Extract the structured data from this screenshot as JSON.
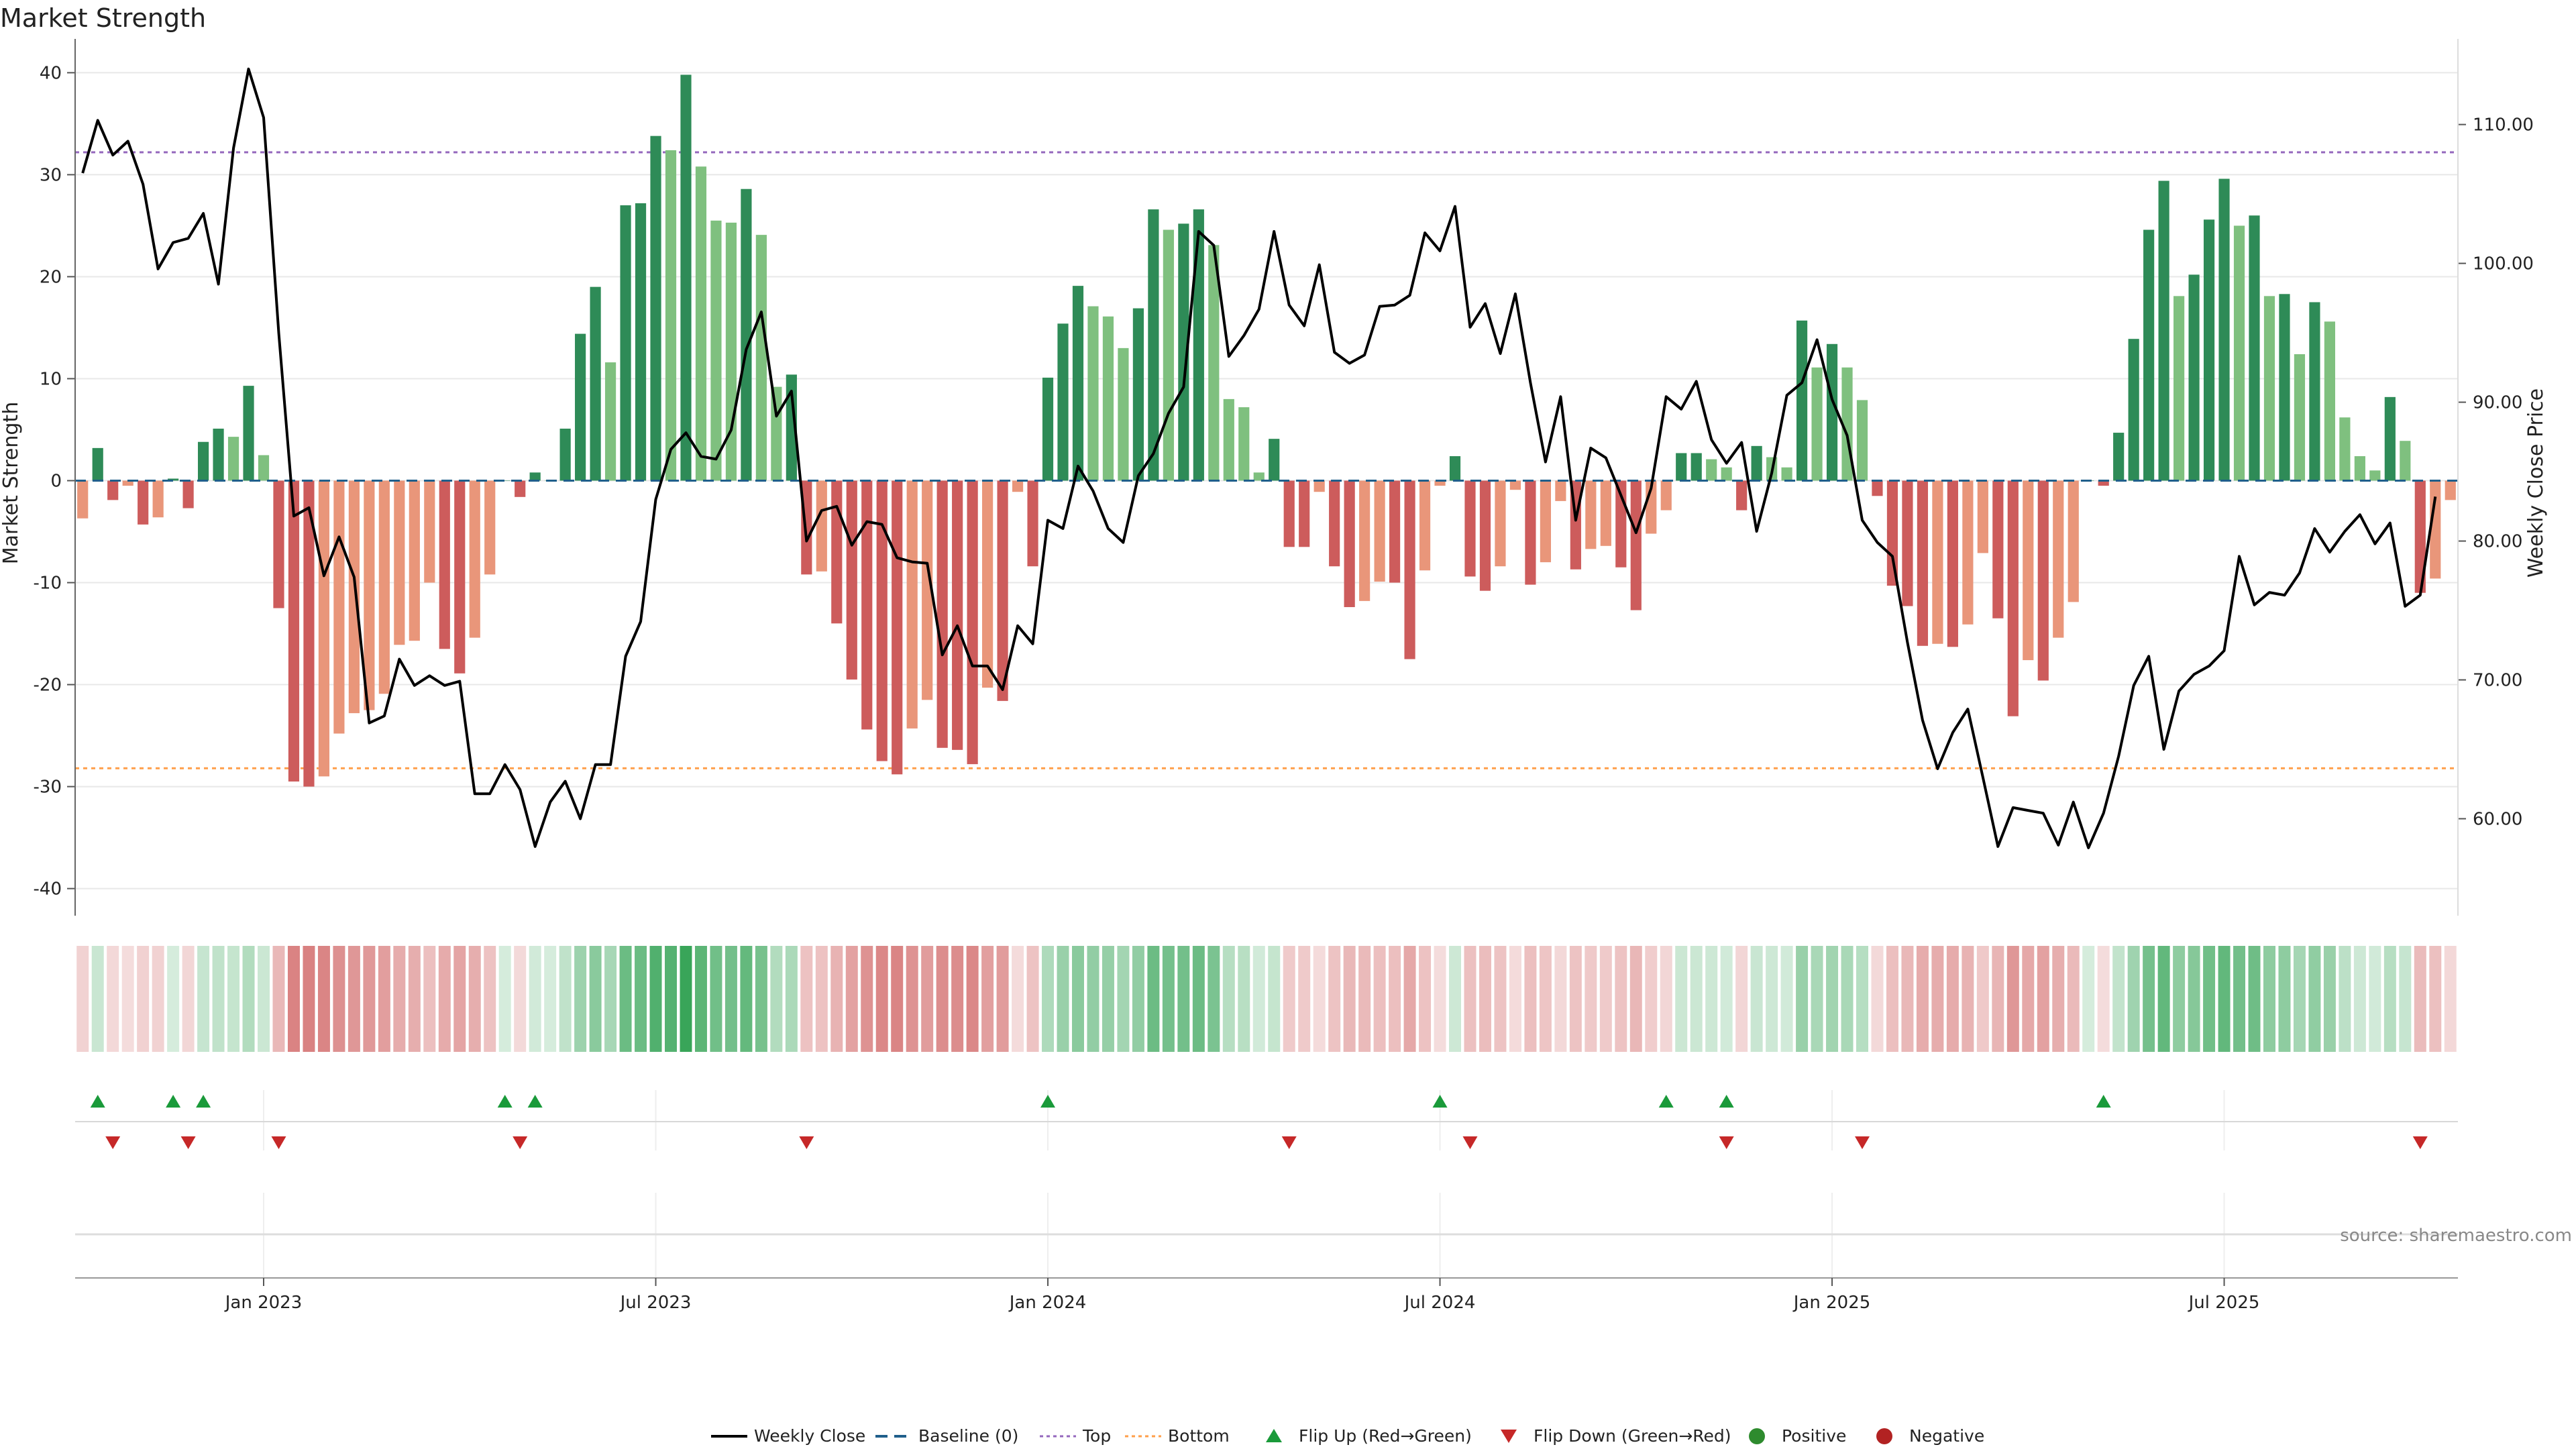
{
  "chart_data": {
    "type": "bar",
    "title": "Market Strength",
    "ylabel_left": "Market Strength",
    "ylabel_right": "Weekly Close Price",
    "left_ylim": [
      -42,
      42
    ],
    "left_ticks": [
      -40,
      -30,
      -20,
      -10,
      0,
      10,
      20,
      30,
      40
    ],
    "right_ylim": [
      53.5,
      115.2
    ],
    "right_ticks": [
      "60.00",
      "70.00",
      "80.00",
      "90.00",
      "100.00",
      "110.00"
    ],
    "x_ticks": [
      {
        "label": "Jan 2023",
        "week": 12
      },
      {
        "label": "Jul 2023",
        "week": 38
      },
      {
        "label": "Jan 2024",
        "week": 64
      },
      {
        "label": "Jul 2024",
        "week": 90
      },
      {
        "label": "Jan 2025",
        "week": 116
      },
      {
        "label": "Jul 2025",
        "week": 142
      }
    ],
    "top_level": 32.2,
    "bottom_level": -28.2,
    "grid": true,
    "legend_position": "bottom-center",
    "series": [
      {
        "name": "Weekly Close",
        "kind": "line",
        "color": "#000000",
        "values": [
          106.5,
          110.3,
          107.8,
          108.8,
          105.7,
          99.6,
          101.5,
          101.8,
          103.6,
          98.5,
          108.3,
          114.0,
          110.5,
          95.0,
          81.8,
          82.4,
          77.5,
          80.3,
          77.4,
          66.9,
          67.4,
          71.5,
          69.6,
          70.3,
          69.6,
          69.9,
          61.8,
          61.8,
          63.9,
          62.1,
          58.0,
          61.2,
          62.7,
          60.0,
          63.9,
          63.9,
          71.7,
          74.2,
          83.0,
          86.6,
          87.8,
          86.1,
          85.9,
          88.0,
          93.8,
          96.5,
          89.0,
          90.8,
          80.0,
          82.2,
          82.5,
          79.7,
          81.4,
          81.2,
          78.8,
          78.5,
          78.4,
          71.8,
          73.9,
          71.0,
          71.0,
          69.3,
          73.9,
          72.6,
          81.5,
          80.9,
          85.4,
          83.6,
          80.9,
          79.9,
          84.7,
          86.3,
          89.2,
          91.1,
          102.3,
          101.3,
          93.3,
          94.8,
          96.7,
          102.3,
          97.0,
          95.5,
          99.9,
          93.6,
          92.8,
          93.4,
          96.9,
          97.0,
          97.7,
          102.2,
          100.9,
          104.1,
          95.4,
          97.1,
          93.5,
          97.8,
          91.4,
          85.7,
          90.4,
          81.5,
          86.7,
          86.0,
          83.3,
          80.6,
          83.8,
          90.4,
          89.5,
          91.5,
          87.3,
          85.6,
          87.1,
          80.7,
          84.9,
          90.5,
          91.4,
          94.5,
          90.2,
          87.6,
          81.5,
          79.9,
          78.9,
          72.7,
          67.1,
          63.6,
          66.2,
          67.9,
          63.0,
          58.0,
          60.8,
          60.6,
          60.4,
          58.1,
          61.2,
          57.9,
          60.4,
          64.5,
          69.6,
          71.7,
          65.0,
          69.2,
          70.4,
          71.0,
          72.1,
          78.9,
          75.4,
          76.3,
          76.1,
          77.7,
          80.9,
          79.2,
          80.7,
          81.9,
          79.8,
          81.3,
          75.3,
          76.1,
          83.2
        ]
      },
      {
        "name": "Baseline (0)",
        "kind": "baseline",
        "color": "#1f5f8b",
        "values": [
          0
        ]
      },
      {
        "name": "Top",
        "kind": "hline",
        "color": "#9467bd",
        "values": [
          32.2
        ]
      },
      {
        "name": "Bottom",
        "kind": "hline",
        "color": "#ff9f4a",
        "values": [
          -28.2
        ]
      },
      {
        "name": "Flip Up (Red→Green)",
        "kind": "marker",
        "color": "#1a9a3a",
        "weeks": [
          1,
          6,
          8,
          28,
          30,
          64,
          90,
          105,
          109,
          134
        ]
      },
      {
        "name": "Flip Down (Green→Red)",
        "kind": "marker",
        "color": "#c62828",
        "weeks": [
          2,
          7,
          13,
          29,
          48,
          80,
          92,
          109,
          118,
          155
        ]
      },
      {
        "name": "Positive",
        "kind": "dot",
        "color": "#2e8b2e"
      },
      {
        "name": "Negative",
        "kind": "dot",
        "color": "#b22222"
      },
      {
        "name": "Market Strength",
        "kind": "bar",
        "values": [
          -3.7,
          3.2,
          -1.9,
          -0.5,
          -4.3,
          -3.6,
          0.2,
          -2.7,
          3.8,
          5.1,
          4.3,
          9.3,
          2.5,
          -12.5,
          -29.5,
          -30.0,
          -29.0,
          -24.8,
          -22.8,
          -22.5,
          -20.9,
          -16.1,
          -15.7,
          -10.0,
          -16.5,
          -18.9,
          -15.4,
          -9.2,
          0.0,
          -1.6,
          0.8,
          0.0,
          5.1,
          14.4,
          19.0,
          11.6,
          27.0,
          27.2,
          33.8,
          32.4,
          39.8,
          30.8,
          25.5,
          25.3,
          28.6,
          24.1,
          9.2,
          10.4,
          -9.2,
          -8.9,
          -14.0,
          -19.5,
          -24.4,
          -27.5,
          -28.8,
          -24.3,
          -21.5,
          -26.2,
          -26.4,
          -27.8,
          -20.3,
          -21.6,
          -1.1,
          -8.4,
          10.1,
          15.4,
          19.1,
          17.1,
          16.1,
          13.0,
          16.9,
          26.6,
          24.6,
          25.2,
          26.6,
          23.1,
          8.0,
          7.2,
          0.8,
          4.1,
          -6.5,
          -6.5,
          -1.1,
          -8.4,
          -12.4,
          -11.8,
          -9.9,
          -10.0,
          -17.5,
          -8.8,
          -0.5,
          2.4,
          -9.4,
          -10.8,
          -8.4,
          -0.9,
          -10.2,
          -8.0,
          -2.0,
          -8.7,
          -6.7,
          -6.4,
          -8.5,
          -12.7,
          -5.2,
          -2.9,
          2.7,
          2.7,
          2.1,
          1.3,
          -2.9,
          3.4,
          2.3,
          1.3,
          15.7,
          11.1,
          13.4,
          11.1,
          7.9,
          -1.5,
          -10.3,
          -12.3,
          -16.2,
          -16.0,
          -16.3,
          -14.1,
          -7.1,
          -13.5,
          -23.1,
          -17.6,
          -19.6,
          -15.4,
          -11.9,
          0.0,
          -0.5,
          4.7,
          13.9,
          24.6,
          29.4,
          18.1,
          20.2,
          25.6,
          29.6,
          25.0,
          26.0,
          18.1,
          18.3,
          12.4,
          17.5,
          15.6,
          6.2,
          2.4,
          1.0,
          8.2,
          3.9,
          -11.0,
          -9.6,
          -1.9
        ]
      }
    ],
    "legend": [
      "Weekly Close",
      "Baseline (0)",
      "Top",
      "Bottom",
      "Flip Up (Red→Green)",
      "Flip Down (Green→Red)",
      "Positive",
      "Negative"
    ]
  },
  "source_label": "source: sharemaestro.com",
  "colors": {
    "bar_pos_strong": "#2e8b57",
    "bar_pos_light": "#7fc07f",
    "bar_neg_strong": "#cd5c5c",
    "bar_neg_light": "#e9967a",
    "grid": "#e8e8e8",
    "axis": "#888888"
  }
}
